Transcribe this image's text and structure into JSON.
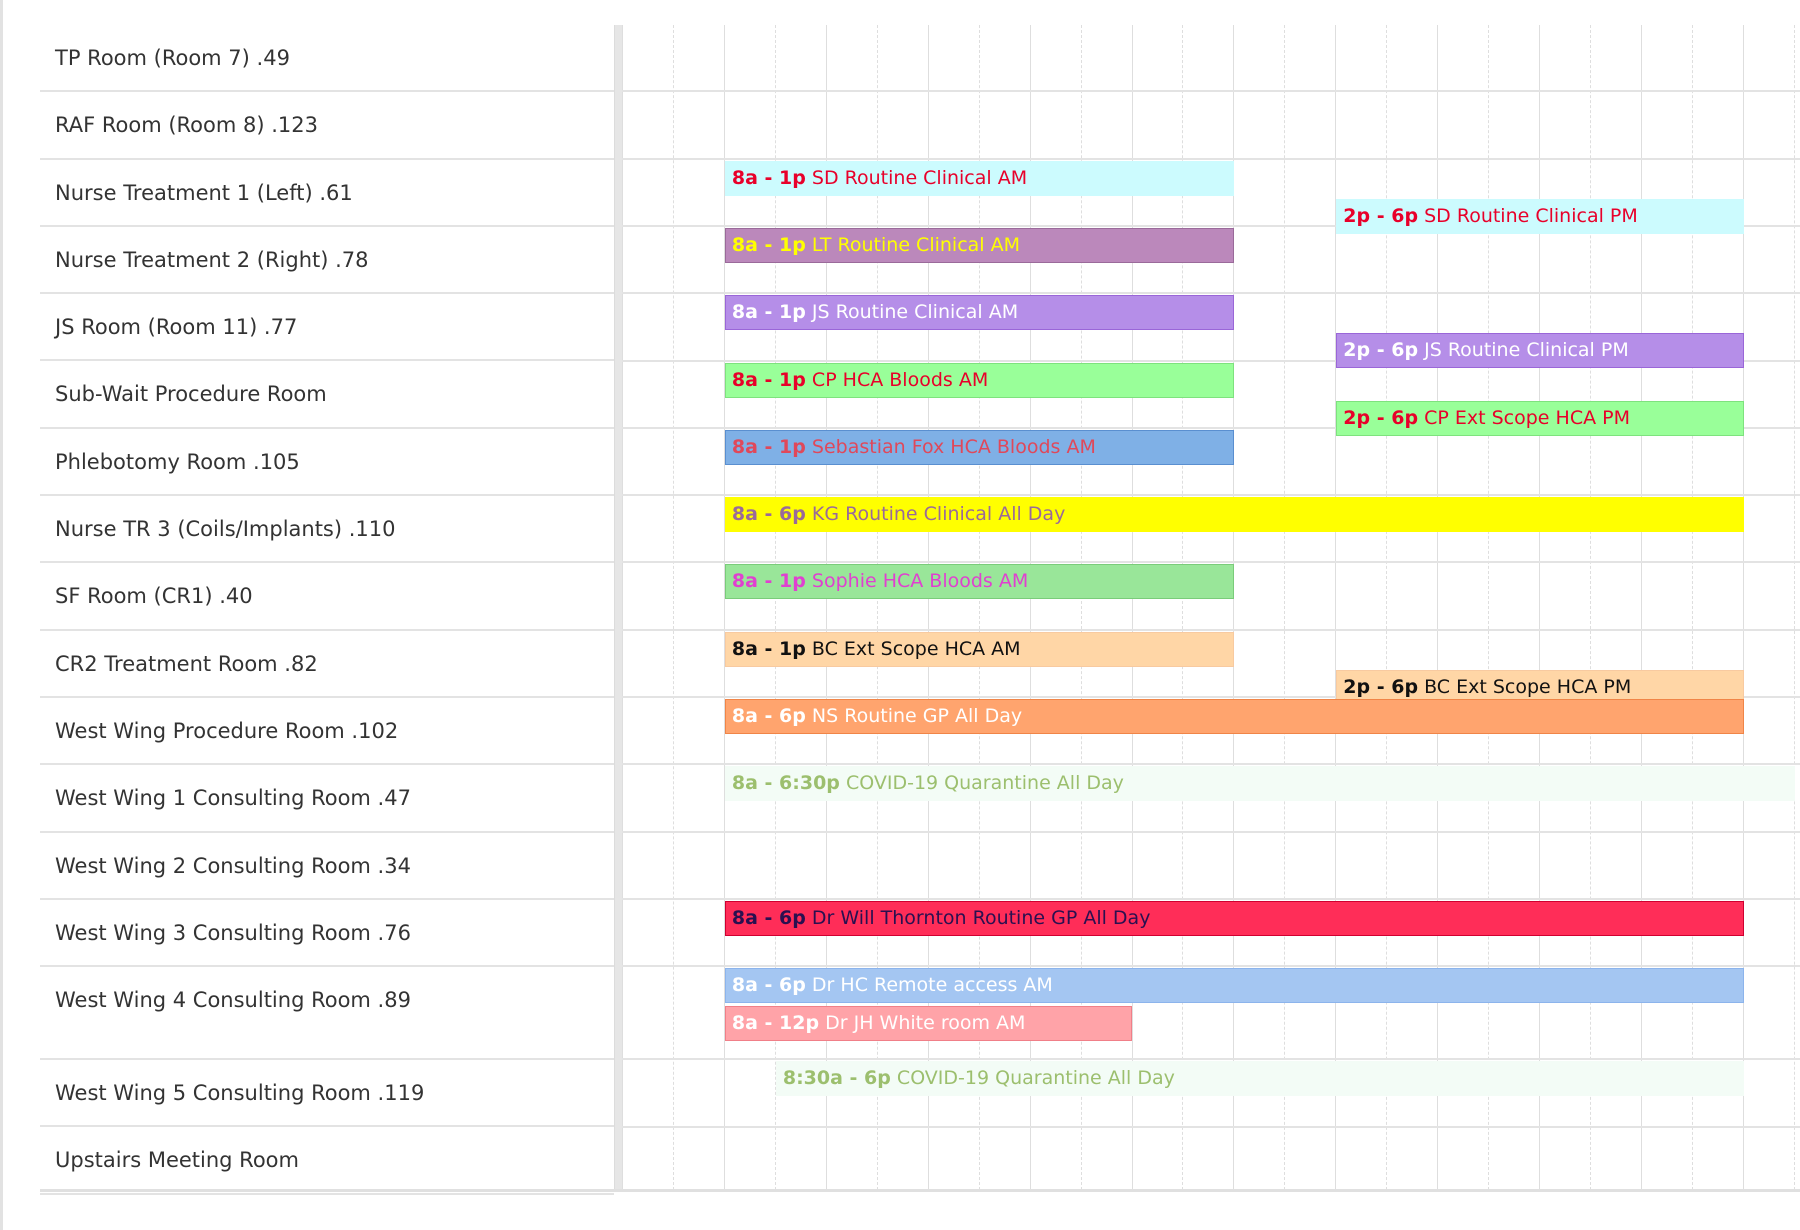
{
  "schedule": {
    "grid_start_hour": 7,
    "grid_hours_visible": 11.6,
    "rooms": [
      {
        "name": "TP Room (Room 7) .49",
        "events": []
      },
      {
        "name": "RAF Room (Room 8) .123",
        "events": []
      },
      {
        "name": "Nurse Treatment 1 (Left) .61",
        "events": [
          {
            "time": "8a - 1p",
            "title": "SD Routine Clinical AM",
            "start": 8,
            "end": 13,
            "bg": "#ccfbfe",
            "border": "#ccfbfe",
            "text": "#e8002a"
          },
          {
            "time": "2p - 6p",
            "title": "SD Routine Clinical PM",
            "start": 14,
            "end": 18,
            "bg": "#ccfbfe",
            "border": "#ccfbfe",
            "text": "#e8002a"
          }
        ]
      },
      {
        "name": "Nurse Treatment 2 (Right) .78",
        "events": [
          {
            "time": "8a - 1p",
            "title": "LT Routine Clinical AM",
            "start": 8,
            "end": 13,
            "bg": "#bb88bb",
            "border": "#9a6a9a",
            "text": "#ffff00"
          }
        ]
      },
      {
        "name": "JS Room (Room 11) .77",
        "events": [
          {
            "time": "8a - 1p",
            "title": "JS Routine Clinical AM",
            "start": 8,
            "end": 13,
            "bg": "#b58ee8",
            "border": "#9a66d8",
            "text": "#ffffff"
          },
          {
            "time": "2p - 6p",
            "title": "JS Routine Clinical PM",
            "start": 14,
            "end": 18,
            "bg": "#b58ee8",
            "border": "#9a66d8",
            "text": "#ffffff"
          }
        ]
      },
      {
        "name": "Sub-Wait Procedure Room",
        "events": [
          {
            "time": "8a - 1p",
            "title": "CP HCA Bloods AM",
            "start": 8,
            "end": 13,
            "bg": "#99ff99",
            "border": "#7ee27e",
            "text": "#e8002a"
          },
          {
            "time": "2p - 6p",
            "title": "CP Ext Scope HCA PM",
            "start": 14,
            "end": 18,
            "bg": "#99ff99",
            "border": "#7ee27e",
            "text": "#e8002a"
          }
        ]
      },
      {
        "name": "Phlebotomy Room .105",
        "events": [
          {
            "time": "8a - 1p",
            "title": "Sebastian Fox HCA Bloods AM",
            "start": 8,
            "end": 13,
            "bg": "#7fb0e6",
            "border": "#5a8fd0",
            "text": "#e0485a"
          }
        ]
      },
      {
        "name": "Nurse TR 3 (Coils/Implants) .110",
        "events": [
          {
            "time": "8a - 6p",
            "title": "KG Routine Clinical All Day",
            "start": 8,
            "end": 18,
            "bg": "#ffff00",
            "border": "#ffff00",
            "text": "#9a6a9a"
          }
        ]
      },
      {
        "name": "SF Room (CR1) .40",
        "events": [
          {
            "time": "8a - 1p",
            "title": "Sophie HCA Bloods AM",
            "start": 8,
            "end": 13,
            "bg": "#99e699",
            "border": "#7acc7a",
            "text": "#e040d0"
          }
        ]
      },
      {
        "name": "CR2 Treatment Room .82",
        "events": [
          {
            "time": "8a - 1p",
            "title": "BC Ext Scope HCA AM",
            "start": 8,
            "end": 13,
            "bg": "#ffd6a6",
            "border": "#f8caa0",
            "text": "#111111"
          },
          {
            "time": "2p - 6p",
            "title": "BC Ext Scope HCA PM",
            "start": 14,
            "end": 18,
            "bg": "#ffd6a6",
            "border": "#f8caa0",
            "text": "#111111"
          }
        ]
      },
      {
        "name": "West Wing Procedure Room .102",
        "events": [
          {
            "time": "8a - 6p",
            "title": "NS Routine GP All Day",
            "start": 8,
            "end": 18,
            "bg": "#ffa46e",
            "border": "#f08548",
            "text": "#ffffff"
          }
        ]
      },
      {
        "name": "West Wing 1 Consulting Room .47",
        "events": [
          {
            "time": "8a - 6:30p",
            "title": "COVID-19 Quarantine All Day",
            "start": 8,
            "end": 18.5,
            "bg": "#f3fcf6",
            "border": "#f3fcf6",
            "text": "#9cbf6e"
          }
        ]
      },
      {
        "name": "West Wing 2 Consulting Room .34",
        "events": []
      },
      {
        "name": "West Wing 3 Consulting Room .76",
        "events": [
          {
            "time": "8a - 6p",
            "title": "Dr Will Thornton Routine GP All Day",
            "start": 8,
            "end": 18,
            "bg": "#ff2d58",
            "border": "#d00030",
            "text": "#2a1050"
          }
        ]
      },
      {
        "name": "West Wing 4 Consulting Room .89",
        "tall": true,
        "events": [
          {
            "time": "8a - 6p",
            "title": "Dr HC Remote access AM",
            "start": 8,
            "end": 18,
            "bg": "#a4c6f2",
            "border": "#8cb4ec",
            "text": "#ffffff"
          },
          {
            "time": "8a - 12p",
            "title": "Dr JH White room AM",
            "start": 8,
            "end": 12,
            "bg": "#ffa3a8",
            "border": "#f07f88",
            "text": "#ffffff"
          }
        ]
      },
      {
        "name": "West Wing 5 Consulting Room .119",
        "events": [
          {
            "time": "8:30a - 6p",
            "title": "COVID-19 Quarantine All Day",
            "start": 8.5,
            "end": 18,
            "bg": "#f3fcf6",
            "border": "#f3fcf6",
            "text": "#9cbf6e"
          }
        ]
      },
      {
        "name": "Upstairs Meeting Room",
        "events": []
      }
    ]
  }
}
